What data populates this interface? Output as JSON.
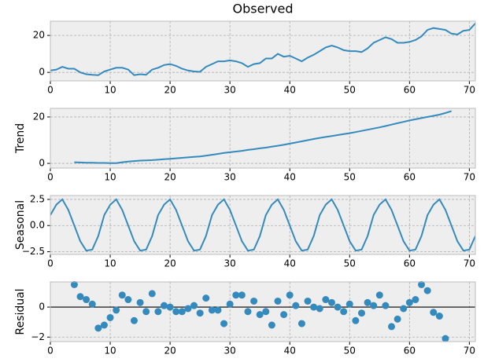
{
  "chart_data": [
    {
      "type": "line",
      "title": "Observed",
      "color": "#348abd",
      "grid": true,
      "x": [
        0,
        1,
        2,
        3,
        4,
        5,
        6,
        7,
        8,
        9,
        10,
        11,
        12,
        13,
        14,
        15,
        16,
        17,
        18,
        19,
        20,
        21,
        22,
        23,
        24,
        25,
        26,
        27,
        28,
        29,
        30,
        31,
        32,
        33,
        34,
        35,
        36,
        37,
        38,
        39,
        40,
        41,
        42,
        43,
        44,
        45,
        46,
        47,
        48,
        49,
        50,
        51,
        52,
        53,
        54,
        55,
        56,
        57,
        58,
        59,
        60,
        61,
        62,
        63,
        64,
        65,
        66,
        67,
        68,
        69,
        70,
        71
      ],
      "values": [
        1,
        1.5,
        3,
        2,
        2,
        0,
        -1,
        -1.3,
        -1.5,
        0.5,
        1.5,
        2.5,
        2.5,
        1.5,
        -1.5,
        -1,
        -1.3,
        1.5,
        2.5,
        4,
        4.5,
        3.5,
        2,
        1,
        0.5,
        0.3,
        3,
        4.5,
        6,
        6,
        6.5,
        6,
        5,
        3,
        4.5,
        5,
        7.5,
        7.5,
        10,
        8.5,
        9,
        7.5,
        6,
        8,
        9.5,
        11.5,
        13.5,
        14.5,
        13.5,
        12,
        11.5,
        11.5,
        11,
        13,
        16,
        17.5,
        19,
        18,
        16,
        16,
        16.5,
        17.5,
        19.5,
        23,
        24,
        23.5,
        23,
        21,
        20.5,
        22.5,
        23,
        26.5
      ],
      "xlim": [
        0,
        71
      ],
      "xticks": [
        0,
        10,
        20,
        30,
        40,
        50,
        60,
        70
      ],
      "ylim": [
        -4.6,
        27.7
      ],
      "yticks": [
        0,
        20
      ]
    },
    {
      "type": "line",
      "ylabel": "Trend",
      "color": "#348abd",
      "grid": true,
      "x": [
        0,
        1,
        2,
        3,
        4,
        5,
        6,
        7,
        8,
        9,
        10,
        11,
        12,
        13,
        14,
        15,
        16,
        17,
        18,
        19,
        20,
        21,
        22,
        23,
        24,
        25,
        26,
        27,
        28,
        29,
        30,
        31,
        32,
        33,
        34,
        35,
        36,
        37,
        38,
        39,
        40,
        41,
        42,
        43,
        44,
        45,
        46,
        47,
        48,
        49,
        50,
        51,
        52,
        53,
        54,
        55,
        56,
        57,
        58,
        59,
        60,
        61,
        62,
        63,
        64,
        65,
        66,
        67,
        68,
        69,
        70,
        71
      ],
      "values": [
        null,
        null,
        null,
        null,
        0.5,
        0.4,
        0.3,
        0.3,
        0.2,
        0.2,
        0.1,
        0.1,
        0.5,
        0.8,
        1,
        1.2,
        1.3,
        1.4,
        1.6,
        1.8,
        2,
        2.2,
        2.4,
        2.6,
        2.8,
        3,
        3.3,
        3.7,
        4.1,
        4.5,
        4.8,
        5.1,
        5.4,
        5.8,
        6.1,
        6.5,
        6.8,
        7.2,
        7.6,
        8,
        8.5,
        9,
        9.5,
        10,
        10.5,
        11,
        11.4,
        11.8,
        12.2,
        12.6,
        13,
        13.5,
        14,
        14.5,
        15,
        15.5,
        16.1,
        16.7,
        17.3,
        17.9,
        18.5,
        19,
        19.5,
        20,
        20.5,
        21,
        21.7,
        22.5,
        null,
        null,
        null,
        null
      ],
      "xlim": [
        0,
        71
      ],
      "xticks": [
        0,
        10,
        20,
        30,
        40,
        50,
        60,
        70
      ],
      "ylim": [
        -2,
        23.7
      ],
      "yticks": [
        0,
        20
      ]
    },
    {
      "type": "line",
      "ylabel": "Seasonal",
      "color": "#348abd",
      "grid": true,
      "x": [
        0,
        1,
        2,
        3,
        4,
        5,
        6,
        7,
        8,
        9,
        10,
        11,
        12,
        13,
        14,
        15,
        16,
        17,
        18,
        19,
        20,
        21,
        22,
        23,
        24,
        25,
        26,
        27,
        28,
        29,
        30,
        31,
        32,
        33,
        34,
        35,
        36,
        37,
        38,
        39,
        40,
        41,
        42,
        43,
        44,
        45,
        46,
        47,
        48,
        49,
        50,
        51,
        52,
        53,
        54,
        55,
        56,
        57,
        58,
        59,
        60,
        61,
        62,
        63,
        64,
        65,
        66,
        67,
        68,
        69,
        70,
        71
      ],
      "values": [
        1,
        2,
        2.5,
        1.5,
        0,
        -1.5,
        -2.4,
        -2.3,
        -1,
        1,
        2,
        2.5,
        1.5,
        0,
        -1.5,
        -2.4,
        -2.3,
        -1,
        1,
        2,
        2.5,
        1.5,
        0,
        -1.5,
        -2.4,
        -2.3,
        -1,
        1,
        2,
        2.5,
        1.5,
        0,
        -1.5,
        -2.4,
        -2.3,
        -1,
        1,
        2,
        2.5,
        1.5,
        0,
        -1.5,
        -2.4,
        -2.3,
        -1,
        1,
        2,
        2.5,
        1.5,
        0,
        -1.5,
        -2.4,
        -2.3,
        -1,
        1,
        2,
        2.5,
        1.5,
        0,
        -1.5,
        -2.4,
        -2.3,
        -1,
        1,
        2,
        2.5,
        1.5,
        0,
        -1.5,
        -2.4,
        -2.3,
        -1
      ],
      "xlim": [
        0,
        71
      ],
      "xticks": [
        0,
        10,
        20,
        30,
        40,
        50,
        60,
        70
      ],
      "ylim": [
        -2.76,
        2.87
      ],
      "yticks": [
        {
          "value": -2.5,
          "label": "−2.5"
        },
        {
          "value": 0,
          "label": "0.0"
        },
        2.5
      ]
    },
    {
      "type": "scatter",
      "ylabel": "Residual",
      "color": "#348abd",
      "grid": true,
      "zero_line": true,
      "x": [
        0,
        1,
        2,
        3,
        4,
        5,
        6,
        7,
        8,
        9,
        10,
        11,
        12,
        13,
        14,
        15,
        16,
        17,
        18,
        19,
        20,
        21,
        22,
        23,
        24,
        25,
        26,
        27,
        28,
        29,
        30,
        31,
        32,
        33,
        34,
        35,
        36,
        37,
        38,
        39,
        40,
        41,
        42,
        43,
        44,
        45,
        46,
        47,
        48,
        49,
        50,
        51,
        52,
        53,
        54,
        55,
        56,
        57,
        58,
        59,
        60,
        61,
        62,
        63,
        64,
        65,
        66,
        67,
        68,
        69,
        70,
        71
      ],
      "values": [
        null,
        null,
        null,
        null,
        1.5,
        0.7,
        0.5,
        0.2,
        -1.4,
        -1.2,
        -0.7,
        -0.2,
        0.8,
        0.5,
        -0.9,
        0.3,
        -0.3,
        0.9,
        -0.3,
        0.1,
        0,
        -0.3,
        -0.3,
        -0.1,
        0.1,
        -0.4,
        0.6,
        -0.2,
        -0.2,
        -1.1,
        0.2,
        0.8,
        0.8,
        -0.3,
        0.4,
        -0.5,
        -0.3,
        -1.2,
        0.4,
        -0.5,
        0.8,
        0.1,
        -1.1,
        0.4,
        0,
        -0.1,
        0.5,
        0.3,
        0,
        -0.3,
        0.2,
        -0.9,
        -0.4,
        0.3,
        0.1,
        0.8,
        0.1,
        -1.3,
        -0.8,
        -0.1,
        0.3,
        0.5,
        1.5,
        1.1,
        -0.35,
        -0.6,
        -2.1,
        null,
        null,
        null,
        null,
        null
      ],
      "xlim": [
        0,
        71
      ],
      "xticks": [
        0,
        10,
        20,
        30,
        40,
        50,
        60,
        70
      ],
      "ylim": [
        -2.3,
        1.68
      ],
      "yticks": [
        {
          "value": -2,
          "label": "−2"
        },
        0
      ]
    }
  ]
}
